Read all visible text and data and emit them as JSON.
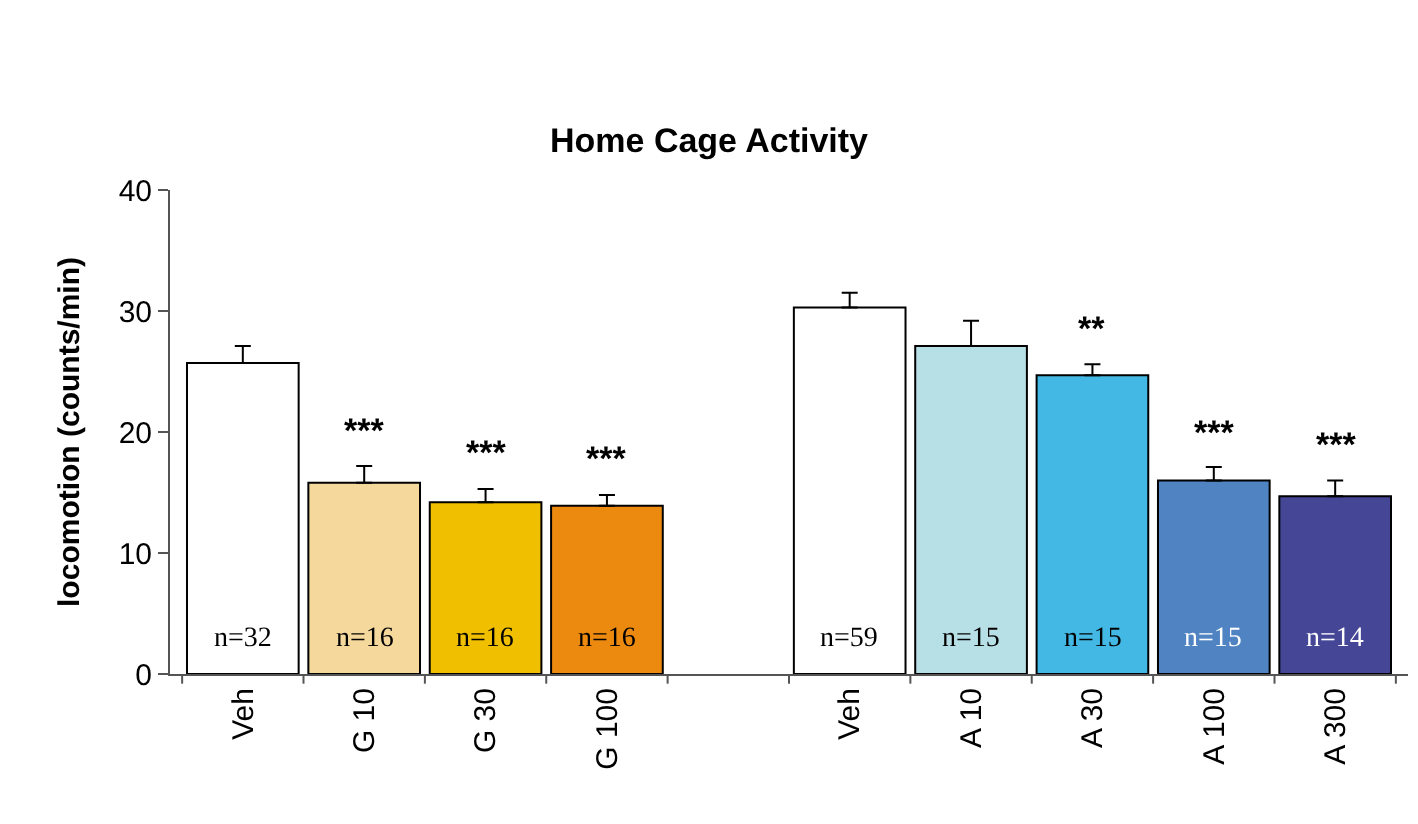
{
  "chart_data": {
    "type": "bar",
    "title": "Home Cage Activity",
    "ylabel": "locomotion (counts/min)",
    "categories": [
      "Veh",
      "G 10",
      "G 30",
      "G 100",
      null,
      "Veh",
      "A 10",
      "A 30",
      "A 100",
      "A 300"
    ],
    "values": [
      25.7,
      15.8,
      14.2,
      13.9,
      null,
      30.3,
      27.1,
      24.7,
      16.0,
      14.7
    ],
    "errors": [
      [
        25.7,
        27.1
      ],
      [
        15.8,
        17.2
      ],
      [
        14.2,
        15.3
      ],
      [
        13.9,
        14.8
      ],
      null,
      [
        30.3,
        31.5
      ],
      [
        27.1,
        29.2
      ],
      [
        24.7,
        25.6
      ],
      [
        16.0,
        17.1
      ],
      [
        14.7,
        16.0
      ]
    ],
    "colors": [
      "#ffffff",
      "#f5d89c",
      "#f0c000",
      "#ec8a10",
      "#ffffff",
      "#ffffff",
      "#b7dfe6",
      "#44b8e4",
      "#4f83c2",
      "#454696"
    ],
    "ylim": [
      0,
      40
    ],
    "yticks": [
      0,
      10,
      20,
      30,
      40
    ],
    "value_labels": [
      null,
      "***",
      "***",
      "***",
      null,
      null,
      null,
      "**",
      "***",
      "***"
    ],
    "annotations": [
      "n=32",
      "n=16",
      "n=16",
      "n=16",
      "n=59",
      "n=15",
      "n=15",
      "n=15",
      "n=14"
    ]
  }
}
